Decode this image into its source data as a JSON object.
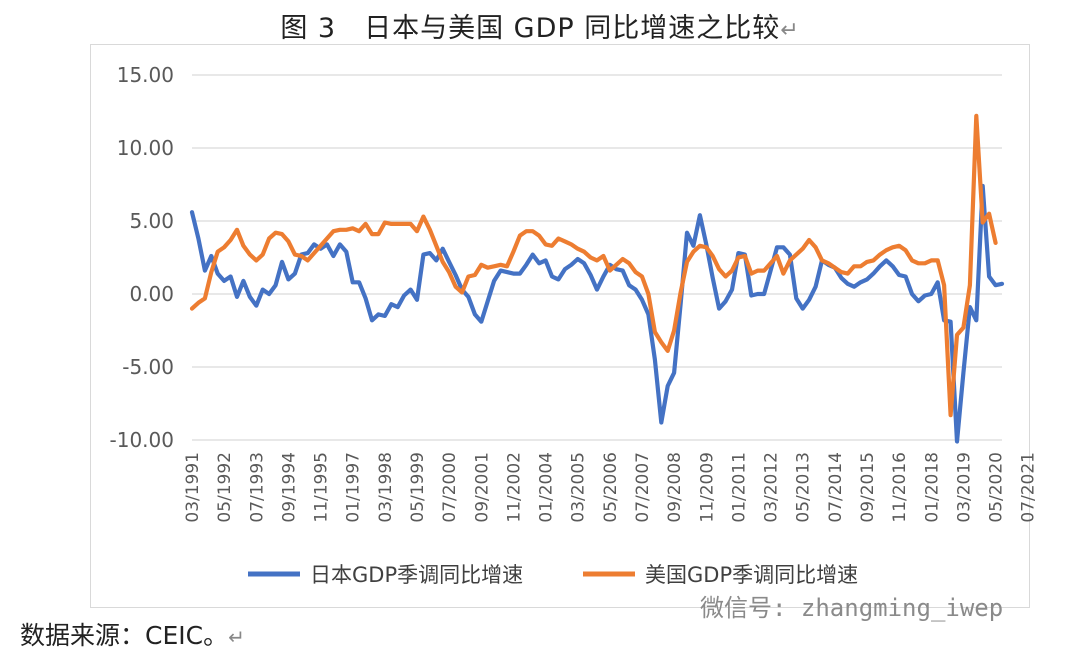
{
  "figure": {
    "title": "图 3　日本与美国 GDP 同比增速之比较",
    "title_return_mark": "↵",
    "source": "数据来源：CEIC。",
    "source_return_mark": "↵",
    "watermark": "微信号: zhangming_iwep"
  },
  "chart_data": {
    "type": "line",
    "title": "图 3　日本与美国 GDP 同比增速之比较",
    "xlabel": "",
    "ylabel": "",
    "ylim": [
      -10,
      15
    ],
    "yticks": [
      -10,
      -5,
      0,
      5,
      10,
      15
    ],
    "ytick_labels": [
      "-10.00",
      "-5.00",
      "0.00",
      "5.00",
      "10.00",
      "15.00"
    ],
    "xtick_labels": [
      "03/1991",
      "05/1992",
      "07/1993",
      "09/1994",
      "11/1995",
      "01/1997",
      "03/1998",
      "05/1999",
      "07/2000",
      "09/2001",
      "11/2002",
      "01/2004",
      "03/2005",
      "05/2006",
      "07/2007",
      "09/2008",
      "11/2009",
      "01/2011",
      "03/2012",
      "05/2013",
      "07/2014",
      "09/2015",
      "11/2016",
      "01/2018",
      "03/2019",
      "05/2020",
      "07/2021"
    ],
    "x_start": "1991Q1",
    "x_frequency": "quarterly",
    "grid": "horizontal",
    "legend_position": "bottom",
    "colors": {
      "japan": "#4472C4",
      "us": "#ED7D31"
    },
    "series": [
      {
        "name": "日本GDP季调同比增速",
        "color": "#4472C4",
        "values": [
          5.6,
          3.8,
          1.6,
          2.6,
          1.4,
          0.9,
          1.2,
          -0.2,
          0.9,
          -0.2,
          -0.8,
          0.3,
          0.0,
          0.6,
          2.2,
          1.0,
          1.4,
          2.7,
          2.8,
          3.4,
          3.1,
          3.4,
          2.6,
          3.4,
          2.9,
          0.8,
          0.8,
          -0.3,
          -1.8,
          -1.4,
          -1.5,
          -0.7,
          -0.9,
          -0.1,
          0.3,
          -0.4,
          2.7,
          2.8,
          2.3,
          3.1,
          2.2,
          1.3,
          0.3,
          -0.2,
          -1.4,
          -1.9,
          -0.5,
          0.9,
          1.6,
          1.5,
          1.4,
          1.4,
          2.0,
          2.7,
          2.1,
          2.3,
          1.2,
          1.0,
          1.7,
          2.0,
          2.4,
          2.1,
          1.3,
          0.3,
          1.2,
          2.0,
          1.7,
          1.6,
          0.6,
          0.3,
          -0.4,
          -1.4,
          -4.5,
          -8.8,
          -6.3,
          -5.4,
          -0.7,
          4.2,
          3.3,
          5.4,
          3.4,
          1.1,
          -1.0,
          -0.5,
          0.3,
          2.8,
          2.7,
          -0.1,
          0.0,
          0.0,
          1.6,
          3.2,
          3.2,
          2.7,
          -0.3,
          -1.0,
          -0.4,
          0.5,
          2.3,
          2.0,
          1.8,
          1.1,
          0.7,
          0.5,
          0.8,
          1.0,
          1.4,
          1.9,
          2.3,
          1.9,
          1.3,
          1.2,
          0.0,
          -0.5,
          -0.1,
          0.0,
          0.8,
          -1.8,
          -1.9,
          -10.1,
          -5.4,
          -0.9,
          -1.8,
          7.4,
          1.2,
          0.6,
          0.7
        ]
      },
      {
        "name": "美国GDP季调同比增速",
        "color": "#ED7D31",
        "values": [
          -1.0,
          -0.6,
          -0.3,
          1.5,
          2.9,
          3.2,
          3.7,
          4.4,
          3.3,
          2.7,
          2.3,
          2.7,
          3.8,
          4.2,
          4.1,
          3.6,
          2.7,
          2.6,
          2.3,
          2.8,
          3.3,
          3.8,
          4.3,
          4.4,
          4.4,
          4.5,
          4.3,
          4.8,
          4.1,
          4.1,
          4.9,
          4.8,
          4.8,
          4.8,
          4.8,
          4.3,
          5.3,
          4.4,
          3.3,
          2.2,
          1.5,
          0.5,
          0.1,
          1.2,
          1.3,
          2.0,
          1.8,
          1.9,
          2.0,
          1.9,
          2.9,
          4.0,
          4.3,
          4.3,
          4.0,
          3.4,
          3.3,
          3.8,
          3.6,
          3.4,
          3.1,
          2.9,
          2.5,
          2.3,
          2.6,
          1.6,
          2.0,
          2.4,
          2.1,
          1.5,
          1.2,
          0.0,
          -2.6,
          -3.3,
          -3.9,
          -2.5,
          0.1,
          2.2,
          2.9,
          3.3,
          3.2,
          2.6,
          1.7,
          1.2,
          1.6,
          2.5,
          2.6,
          1.4,
          1.6,
          1.6,
          2.1,
          2.6,
          1.4,
          2.3,
          2.7,
          3.1,
          3.7,
          3.2,
          2.3,
          2.1,
          1.8,
          1.5,
          1.4,
          1.9,
          1.9,
          2.2,
          2.3,
          2.7,
          3.0,
          3.2,
          3.3,
          3.0,
          2.3,
          2.1,
          2.1,
          2.3,
          2.3,
          0.6,
          -8.3,
          -2.8,
          -2.3,
          0.6,
          12.2,
          4.9,
          5.5,
          3.5
        ]
      }
    ]
  }
}
